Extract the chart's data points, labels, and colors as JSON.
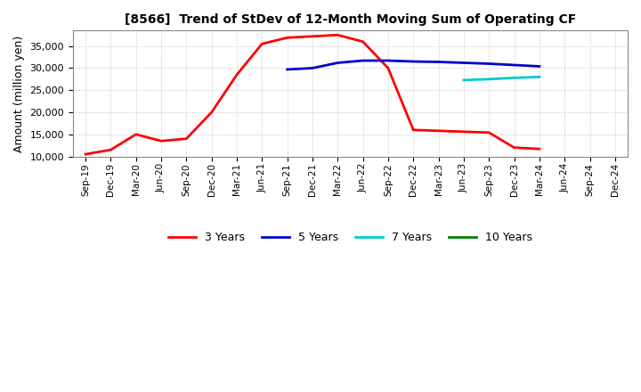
{
  "title": "[8566]  Trend of StDev of 12-Month Moving Sum of Operating CF",
  "ylabel": "Amount (million yen)",
  "ylim": [
    10000,
    38500
  ],
  "yticks": [
    10000,
    15000,
    20000,
    25000,
    30000,
    35000
  ],
  "background_color": "#ffffff",
  "grid_color": "#bbbbbb",
  "series": {
    "3years": {
      "color": "#ff0000",
      "label": "3 Years",
      "x": [
        "Sep-19",
        "Dec-19",
        "Mar-20",
        "Jun-20",
        "Sep-20",
        "Dec-20",
        "Mar-21",
        "Jun-21",
        "Sep-21",
        "Dec-21",
        "Mar-22",
        "Jun-22",
        "Sep-22",
        "Dec-22",
        "Mar-23",
        "Jun-23",
        "Sep-23",
        "Dec-23",
        "Mar-24"
      ],
      "y": [
        10500,
        11500,
        15000,
        13500,
        14000,
        20000,
        28500,
        35500,
        36900,
        37200,
        37500,
        36000,
        30000,
        16000,
        15800,
        15600,
        15400,
        12000,
        11700
      ]
    },
    "5years": {
      "color": "#0000cc",
      "label": "5 Years",
      "x": [
        "Sep-21",
        "Dec-21",
        "Mar-22",
        "Jun-22",
        "Sep-22",
        "Dec-22",
        "Mar-23",
        "Jun-23",
        "Sep-23",
        "Dec-23",
        "Mar-24"
      ],
      "y": [
        29700,
        30000,
        31200,
        31700,
        31700,
        31500,
        31400,
        31200,
        31000,
        30700,
        30400
      ]
    },
    "7years": {
      "color": "#00cccc",
      "label": "7 Years",
      "x": [
        "Jun-23",
        "Sep-23",
        "Dec-23",
        "Mar-24"
      ],
      "y": [
        27300,
        27500,
        27800,
        28000
      ]
    },
    "10years": {
      "color": "#008000",
      "label": "10 Years",
      "x": [],
      "y": []
    }
  },
  "xtick_labels": [
    "Sep-19",
    "Dec-19",
    "Mar-20",
    "Jun-20",
    "Sep-20",
    "Dec-20",
    "Mar-21",
    "Jun-21",
    "Sep-21",
    "Dec-21",
    "Mar-22",
    "Jun-22",
    "Sep-22",
    "Dec-22",
    "Mar-23",
    "Jun-23",
    "Sep-23",
    "Dec-23",
    "Mar-24",
    "Jun-24",
    "Sep-24",
    "Dec-24"
  ],
  "legend_colors": [
    "#ff0000",
    "#0000cc",
    "#00cccc",
    "#008000"
  ],
  "legend_labels": [
    "3 Years",
    "5 Years",
    "7 Years",
    "10 Years"
  ]
}
